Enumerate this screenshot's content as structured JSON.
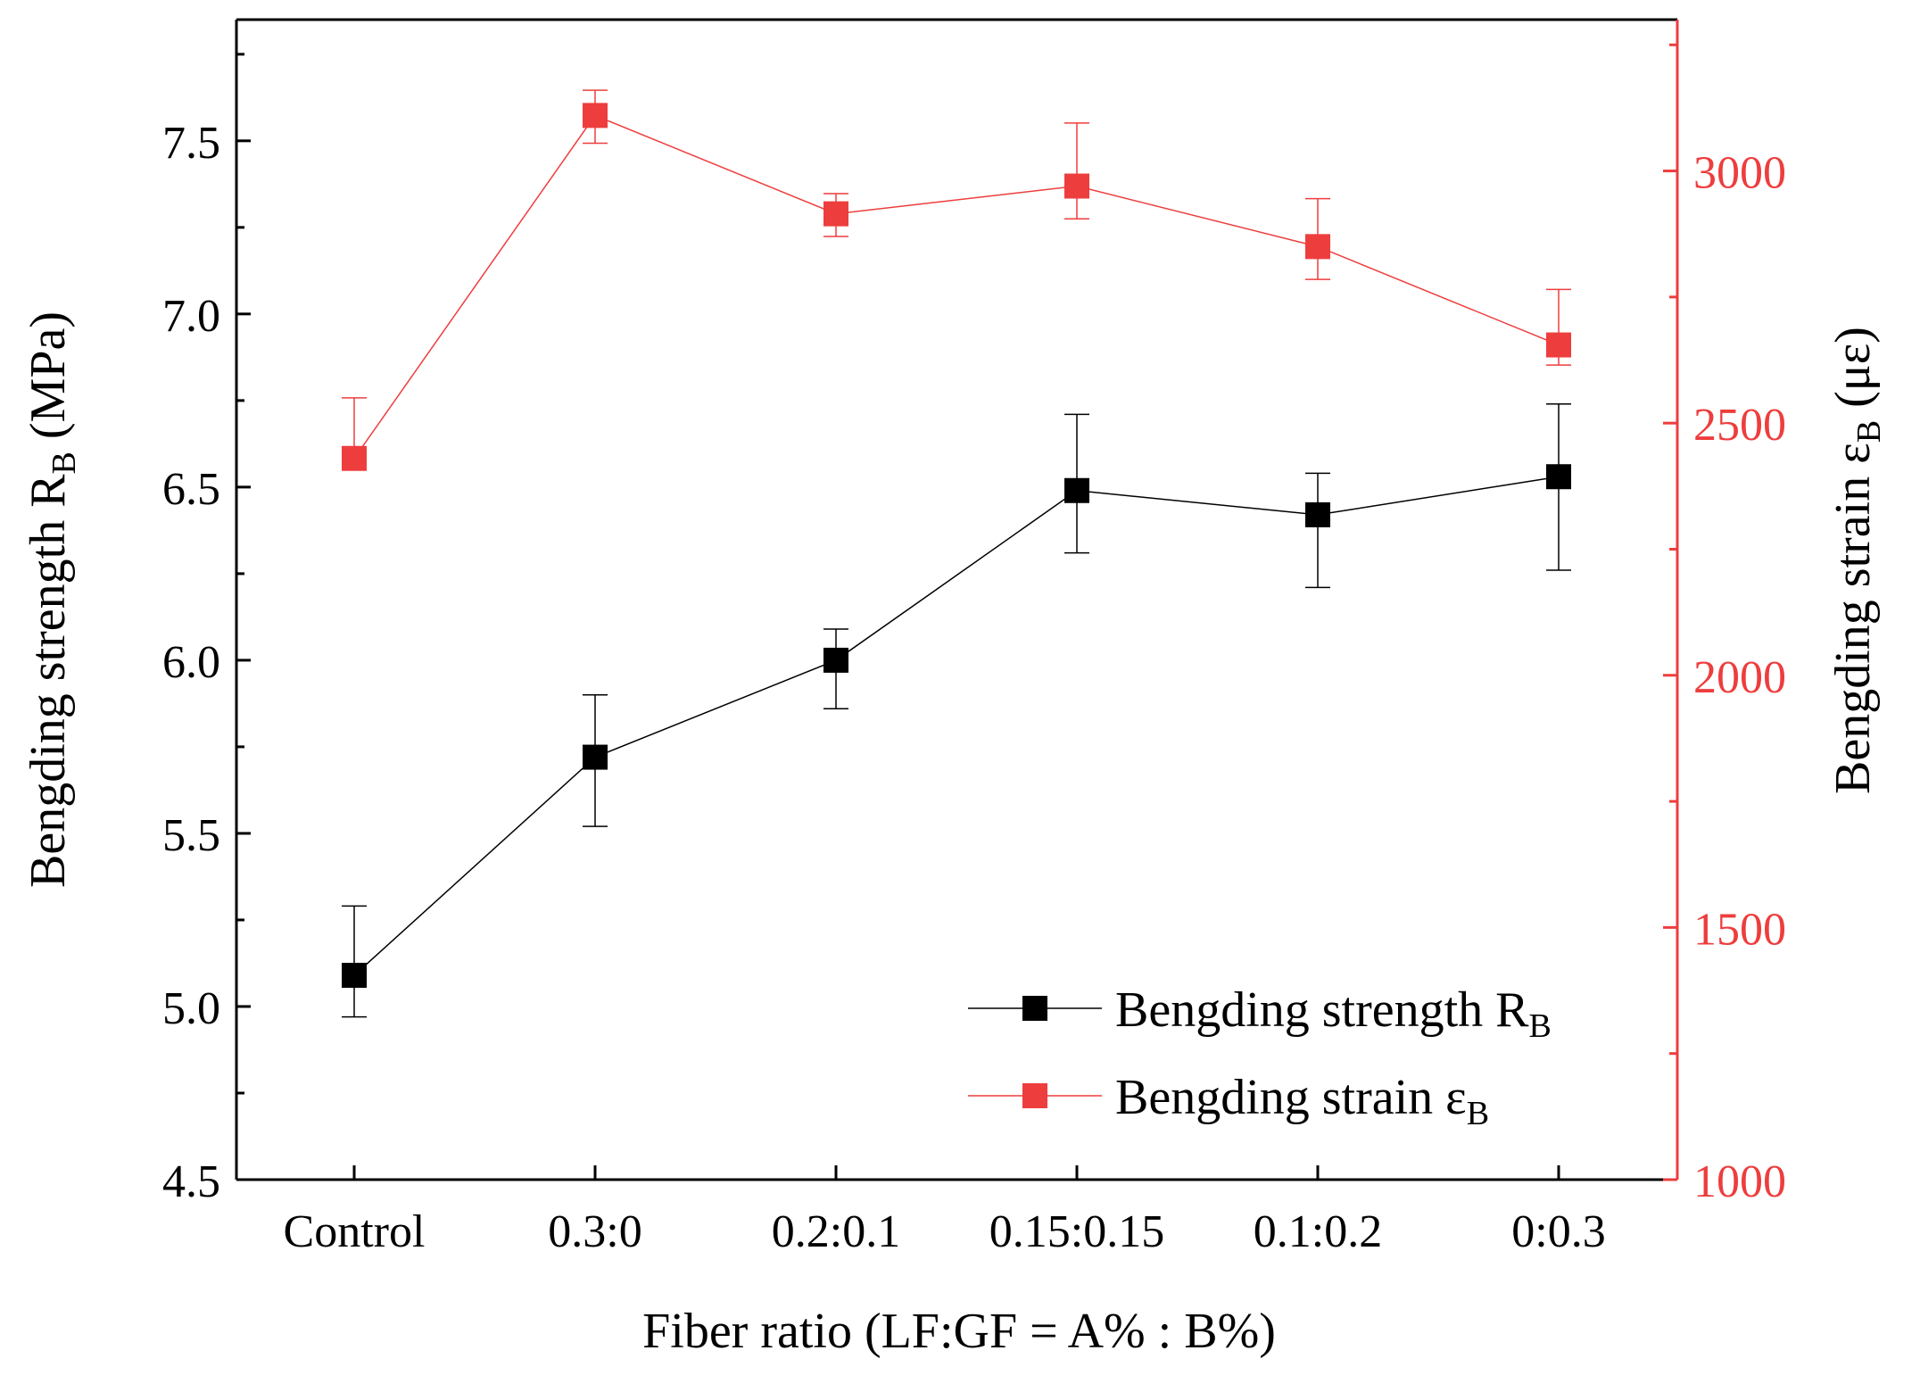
{
  "colors": {
    "left_series": "#000000",
    "right_series": "#ee3d3d",
    "right_axis": "#ee3d3d",
    "frame": "#000000"
  },
  "chart_data": {
    "type": "line",
    "xlabel": "Fiber ratio (LF:GF = A% : B%)",
    "categories": [
      "Control",
      "0.3:0",
      "0.2:0.1",
      "0.15:0.15",
      "0.1:0.2",
      "0:0.3"
    ],
    "y_left": {
      "label_main": "Bengding strength R",
      "label_sub": "B",
      "label_tail": " (MPa)",
      "ylim": [
        4.5,
        7.85
      ],
      "ticks": [
        4.5,
        5.0,
        5.5,
        6.0,
        6.5,
        7.0,
        7.5
      ],
      "tick_labels": [
        "4.5",
        "5.0",
        "5.5",
        "6.0",
        "6.5",
        "7.0",
        "7.5"
      ]
    },
    "y_right": {
      "label_main": "Bengding strain ε",
      "label_sub": "B",
      "label_tail": " (με)",
      "ylim": [
        1000,
        3300
      ],
      "ticks": [
        1000,
        1500,
        2000,
        2500,
        3000
      ],
      "tick_labels": [
        "1000",
        "1500",
        "2000",
        "2500",
        "3000"
      ]
    },
    "series": [
      {
        "name_main": "Bengding strength R",
        "name_sub": "B",
        "axis": "left",
        "values": [
          5.09,
          5.72,
          6.0,
          6.49,
          6.42,
          6.53
        ],
        "err_upper": [
          5.29,
          5.9,
          6.09,
          6.71,
          6.54,
          6.74
        ],
        "err_lower": [
          4.97,
          5.52,
          5.86,
          6.31,
          6.21,
          6.26
        ]
      },
      {
        "name_main": "Bengding strain ε",
        "name_sub": "B",
        "axis": "right",
        "values": [
          2430,
          3110,
          2915,
          2970,
          2850,
          2655
        ],
        "err_upper": [
          2550,
          3160,
          2955,
          3095,
          2945,
          2765
        ],
        "err_lower": [
          2410,
          3055,
          2870,
          2905,
          2785,
          2615
        ]
      }
    ],
    "legend_position": "bottom-right"
  }
}
